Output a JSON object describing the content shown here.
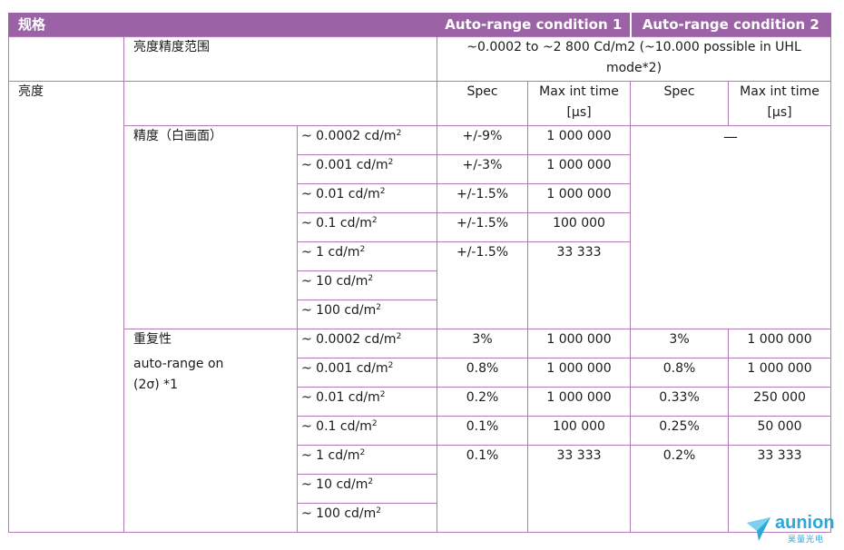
{
  "header": {
    "spec": "规格",
    "cond1": "Auto-range condition 1",
    "cond2": "Auto-range condition 2"
  },
  "range_row": {
    "label": "亮度精度范围",
    "value": "~0.0002 to ~2 800 Cd/m2 (~10.000 possible in UHL mode*2)"
  },
  "section": "亮度",
  "subheads": {
    "spec1": "Spec",
    "maxint1": "Max int time [µs]",
    "spec2": "Spec",
    "maxint2": "Max int time [µs]"
  },
  "accuracy": {
    "label": "精度（白画面）",
    "rows": [
      {
        "level": "~ 0.0002 cd/m",
        "spec": "+/-9%",
        "time": "1 000 000"
      },
      {
        "level": "~ 0.001 cd/m",
        "spec": "+/-3%",
        "time": "1 000 000"
      },
      {
        "level": "~ 0.01 cd/m",
        "spec": "+/-1.5%",
        "time": "1 000 000"
      },
      {
        "level": "~ 0.1 cd/m",
        "spec": "+/-1.5%",
        "time": "100 000"
      },
      {
        "level": "~ 1 cd/m",
        "spec": "+/-1.5%",
        "time": "33 333"
      },
      {
        "level": "~ 10 cd/m"
      },
      {
        "level": "~ 100 cd/m"
      }
    ],
    "cond2_value": "—"
  },
  "repeatability": {
    "label": "重复性",
    "note1": "auto-range on",
    "note2": "(2σ) *1",
    "rows": [
      {
        "level": "~ 0.0002 cd/m",
        "spec1": "3%",
        "time1": "1 000 000",
        "spec2": "3%",
        "time2": "1 000 000"
      },
      {
        "level": "~ 0.001 cd/m",
        "spec1": "0.8%",
        "time1": "1 000 000",
        "spec2": "0.8%",
        "time2": "1 000 000"
      },
      {
        "level": "~ 0.01 cd/m",
        "spec1": "0.2%",
        "time1": "1 000 000",
        "spec2": "0.33%",
        "time2": "250 000"
      },
      {
        "level": "~ 0.1 cd/m",
        "spec1": "0.1%",
        "time1": "100 000",
        "spec2": "0.25%",
        "time2": "50 000"
      },
      {
        "level": "~ 1 cd/m",
        "spec1": "0.1%",
        "time1": "33 333",
        "spec2": "0.2%",
        "time2": "33 333"
      },
      {
        "level": "~ 10 cd/m"
      },
      {
        "level": "~ 100 cd/m"
      }
    ]
  },
  "unit_sup": "2",
  "logo": {
    "word": "aunion",
    "sub": "昊量光电"
  }
}
